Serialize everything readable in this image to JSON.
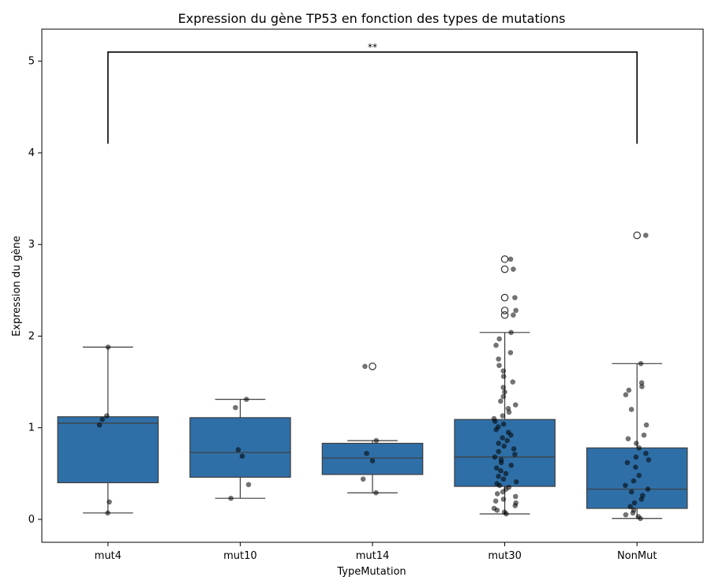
{
  "chart_data": {
    "type": "box",
    "title": "Expression du gène TP53 en fonction des types de mutations",
    "xlabel": "TypeMutation",
    "ylabel": "Expression du gène",
    "categories": [
      "mut4",
      "mut10",
      "mut14",
      "mut30",
      "NonMut"
    ],
    "ylim": [
      -0.25,
      5.35
    ],
    "yticks": [
      0,
      1,
      2,
      3,
      4,
      5
    ],
    "box_color": "#2f6fa7",
    "point_color": "#000000",
    "grid": false,
    "boxes": [
      {
        "category": "mut4",
        "whislo": 0.07,
        "q1": 0.4,
        "med": 1.05,
        "q3": 1.12,
        "whishi": 1.88,
        "fliers": []
      },
      {
        "category": "mut10",
        "whislo": 0.23,
        "q1": 0.46,
        "med": 0.73,
        "q3": 1.11,
        "whishi": 1.31,
        "fliers": []
      },
      {
        "category": "mut14",
        "whislo": 0.29,
        "q1": 0.49,
        "med": 0.67,
        "q3": 0.83,
        "whishi": 0.86,
        "fliers": [
          1.67
        ]
      },
      {
        "category": "mut30",
        "whislo": 0.06,
        "q1": 0.36,
        "med": 0.68,
        "q3": 1.09,
        "whishi": 2.04,
        "fliers": [
          2.23,
          2.28,
          2.42,
          2.73,
          2.84
        ]
      },
      {
        "category": "NonMut",
        "whislo": 0.01,
        "q1": 0.12,
        "med": 0.33,
        "q3": 0.78,
        "whishi": 1.7,
        "fliers": [
          3.1
        ]
      }
    ],
    "points": {
      "mut4": [
        0.07,
        0.19,
        1.03,
        1.09,
        1.13,
        1.88
      ],
      "mut10": [
        0.23,
        0.38,
        0.69,
        0.76,
        1.22,
        1.31
      ],
      "mut14": [
        0.29,
        0.44,
        0.64,
        0.72,
        0.86,
        1.67
      ],
      "mut30": [
        0.06,
        0.08,
        0.1,
        0.12,
        0.15,
        0.18,
        0.2,
        0.22,
        0.25,
        0.28,
        0.3,
        0.33,
        0.35,
        0.37,
        0.39,
        0.41,
        0.44,
        0.47,
        0.5,
        0.53,
        0.56,
        0.59,
        0.62,
        0.65,
        0.68,
        0.71,
        0.74,
        0.77,
        0.8,
        0.83,
        0.86,
        0.89,
        0.92,
        0.95,
        0.98,
        1.01,
        1.04,
        1.07,
        1.1,
        1.13,
        1.17,
        1.21,
        1.25,
        1.29,
        1.34,
        1.39,
        1.44,
        1.5,
        1.56,
        1.62,
        1.68,
        1.75,
        1.82,
        1.9,
        1.97,
        2.04,
        2.23,
        2.28,
        2.42,
        2.73,
        2.84
      ],
      "NonMut": [
        0.01,
        0.03,
        0.05,
        0.07,
        0.1,
        0.14,
        0.18,
        0.22,
        0.26,
        0.3,
        0.33,
        0.37,
        0.42,
        0.48,
        0.57,
        0.62,
        0.65,
        0.68,
        0.72,
        0.78,
        0.83,
        0.88,
        0.92,
        1.03,
        1.2,
        1.36,
        1.41,
        1.45,
        1.49,
        1.7,
        3.1
      ]
    },
    "annotation": {
      "text": "**",
      "from": "mut4",
      "to": "NonMut",
      "y_bracket": 5.1,
      "y_legs": 4.1
    }
  }
}
